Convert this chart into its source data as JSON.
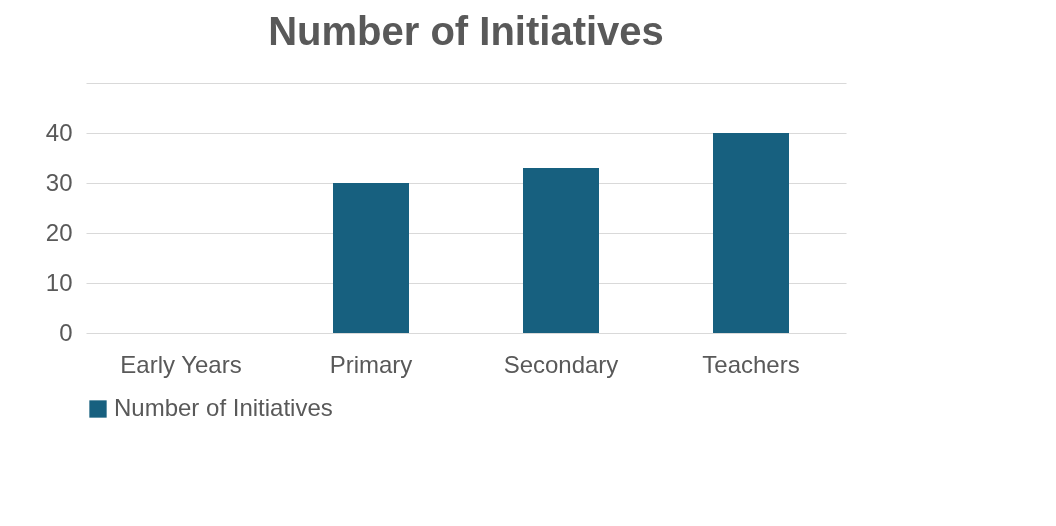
{
  "chart_data": {
    "type": "bar",
    "title": "Number of Initiatives",
    "categories": [
      "Early Years",
      "Primary",
      "Secondary",
      "Teachers"
    ],
    "series": [
      {
        "name": "Number of Initiatives",
        "color": "#17607f",
        "values": [
          0,
          30,
          33,
          40
        ]
      }
    ],
    "ylim": [
      0,
      50
    ],
    "yticks": [
      0,
      10,
      20,
      30,
      40,
      {
        "value": 50,
        "label": null
      }
    ],
    "grid": "y",
    "legend": "bottom"
  }
}
